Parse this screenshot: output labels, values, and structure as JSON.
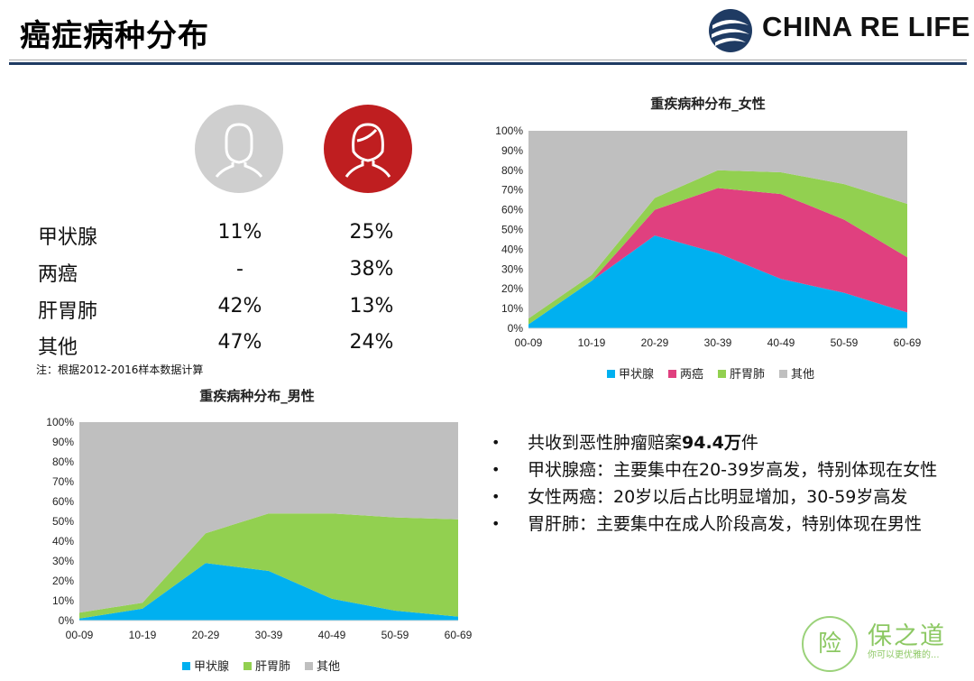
{
  "header": {
    "title": "癌症病种分布",
    "logo_text": "CHINA RE LIFE"
  },
  "stats": {
    "rows": [
      {
        "label": "甲状腺",
        "male": "11%",
        "female": "25%"
      },
      {
        "label": "两癌",
        "male": "-",
        "female": "38%"
      },
      {
        "label": "肝胃肺",
        "male": "42%",
        "female": "13%"
      },
      {
        "label": "其他",
        "male": "47%",
        "female": "24%"
      }
    ],
    "note": "注：根据2012-2016样本数据计算"
  },
  "colors": {
    "thyroid": "#00b0f0",
    "two_cancers": "#e0407f",
    "liver_stomach_lung": "#92d050",
    "other": "#bfbfbf",
    "brand": "#1f3b63",
    "female_avatar": "#bf1e20",
    "male_avatar": "#cfcfcf"
  },
  "chart_data": [
    {
      "type": "area",
      "stacked": true,
      "title": "重疾病种分布_女性",
      "categories": [
        "00-09",
        "10-19",
        "20-29",
        "30-39",
        "40-49",
        "50-59",
        "60-69"
      ],
      "ylim": [
        0,
        100
      ],
      "ytick_labels": [
        "0%",
        "10%",
        "20%",
        "30%",
        "40%",
        "50%",
        "60%",
        "70%",
        "80%",
        "90%",
        "100%"
      ],
      "legend_position": "bottom",
      "series": [
        {
          "name": "甲状腺",
          "values": [
            2,
            24,
            47,
            38,
            25,
            18,
            8
          ],
          "color": "#00b0f0"
        },
        {
          "name": "两癌",
          "values": [
            0,
            0,
            13,
            33,
            43,
            37,
            28
          ],
          "color": "#e0407f"
        },
        {
          "name": "肝胃肺",
          "values": [
            3,
            3,
            6,
            9,
            11,
            18,
            27
          ],
          "color": "#92d050"
        },
        {
          "name": "其他",
          "values": [
            95,
            73,
            34,
            20,
            21,
            27,
            37
          ],
          "color": "#bfbfbf"
        }
      ]
    },
    {
      "type": "area",
      "stacked": true,
      "title": "重疾病种分布_男性",
      "categories": [
        "00-09",
        "10-19",
        "20-29",
        "30-39",
        "40-49",
        "50-59",
        "60-69"
      ],
      "ylim": [
        0,
        100
      ],
      "ytick_labels": [
        "0%",
        "10%",
        "20%",
        "30%",
        "40%",
        "50%",
        "60%",
        "70%",
        "80%",
        "90%",
        "100%"
      ],
      "legend_position": "bottom",
      "series": [
        {
          "name": "甲状腺",
          "values": [
            1,
            6,
            29,
            25,
            11,
            5,
            2
          ],
          "color": "#00b0f0"
        },
        {
          "name": "肝胃肺",
          "values": [
            3,
            3,
            15,
            29,
            43,
            47,
            49
          ],
          "color": "#92d050"
        },
        {
          "name": "其他",
          "values": [
            96,
            91,
            56,
            46,
            46,
            48,
            49
          ],
          "color": "#bfbfbf"
        }
      ]
    }
  ],
  "bullets": [
    {
      "pre": "共收到恶性肿瘤赔案",
      "bold": "94.4万",
      "post": "件"
    },
    {
      "pre": "甲状腺癌：主要集中在20-39岁高发，特别体现在女性",
      "bold": "",
      "post": ""
    },
    {
      "pre": "女性两癌：20岁以后占比明显增加，30-59岁高发",
      "bold": "",
      "post": ""
    },
    {
      "pre": "胃肝肺：主要集中在成人阶段高发，特别体现在男性",
      "bold": "",
      "post": ""
    }
  ],
  "watermark": {
    "circle_char": "险",
    "title": "保之道",
    "subtitle": "你可以更优雅的..."
  }
}
